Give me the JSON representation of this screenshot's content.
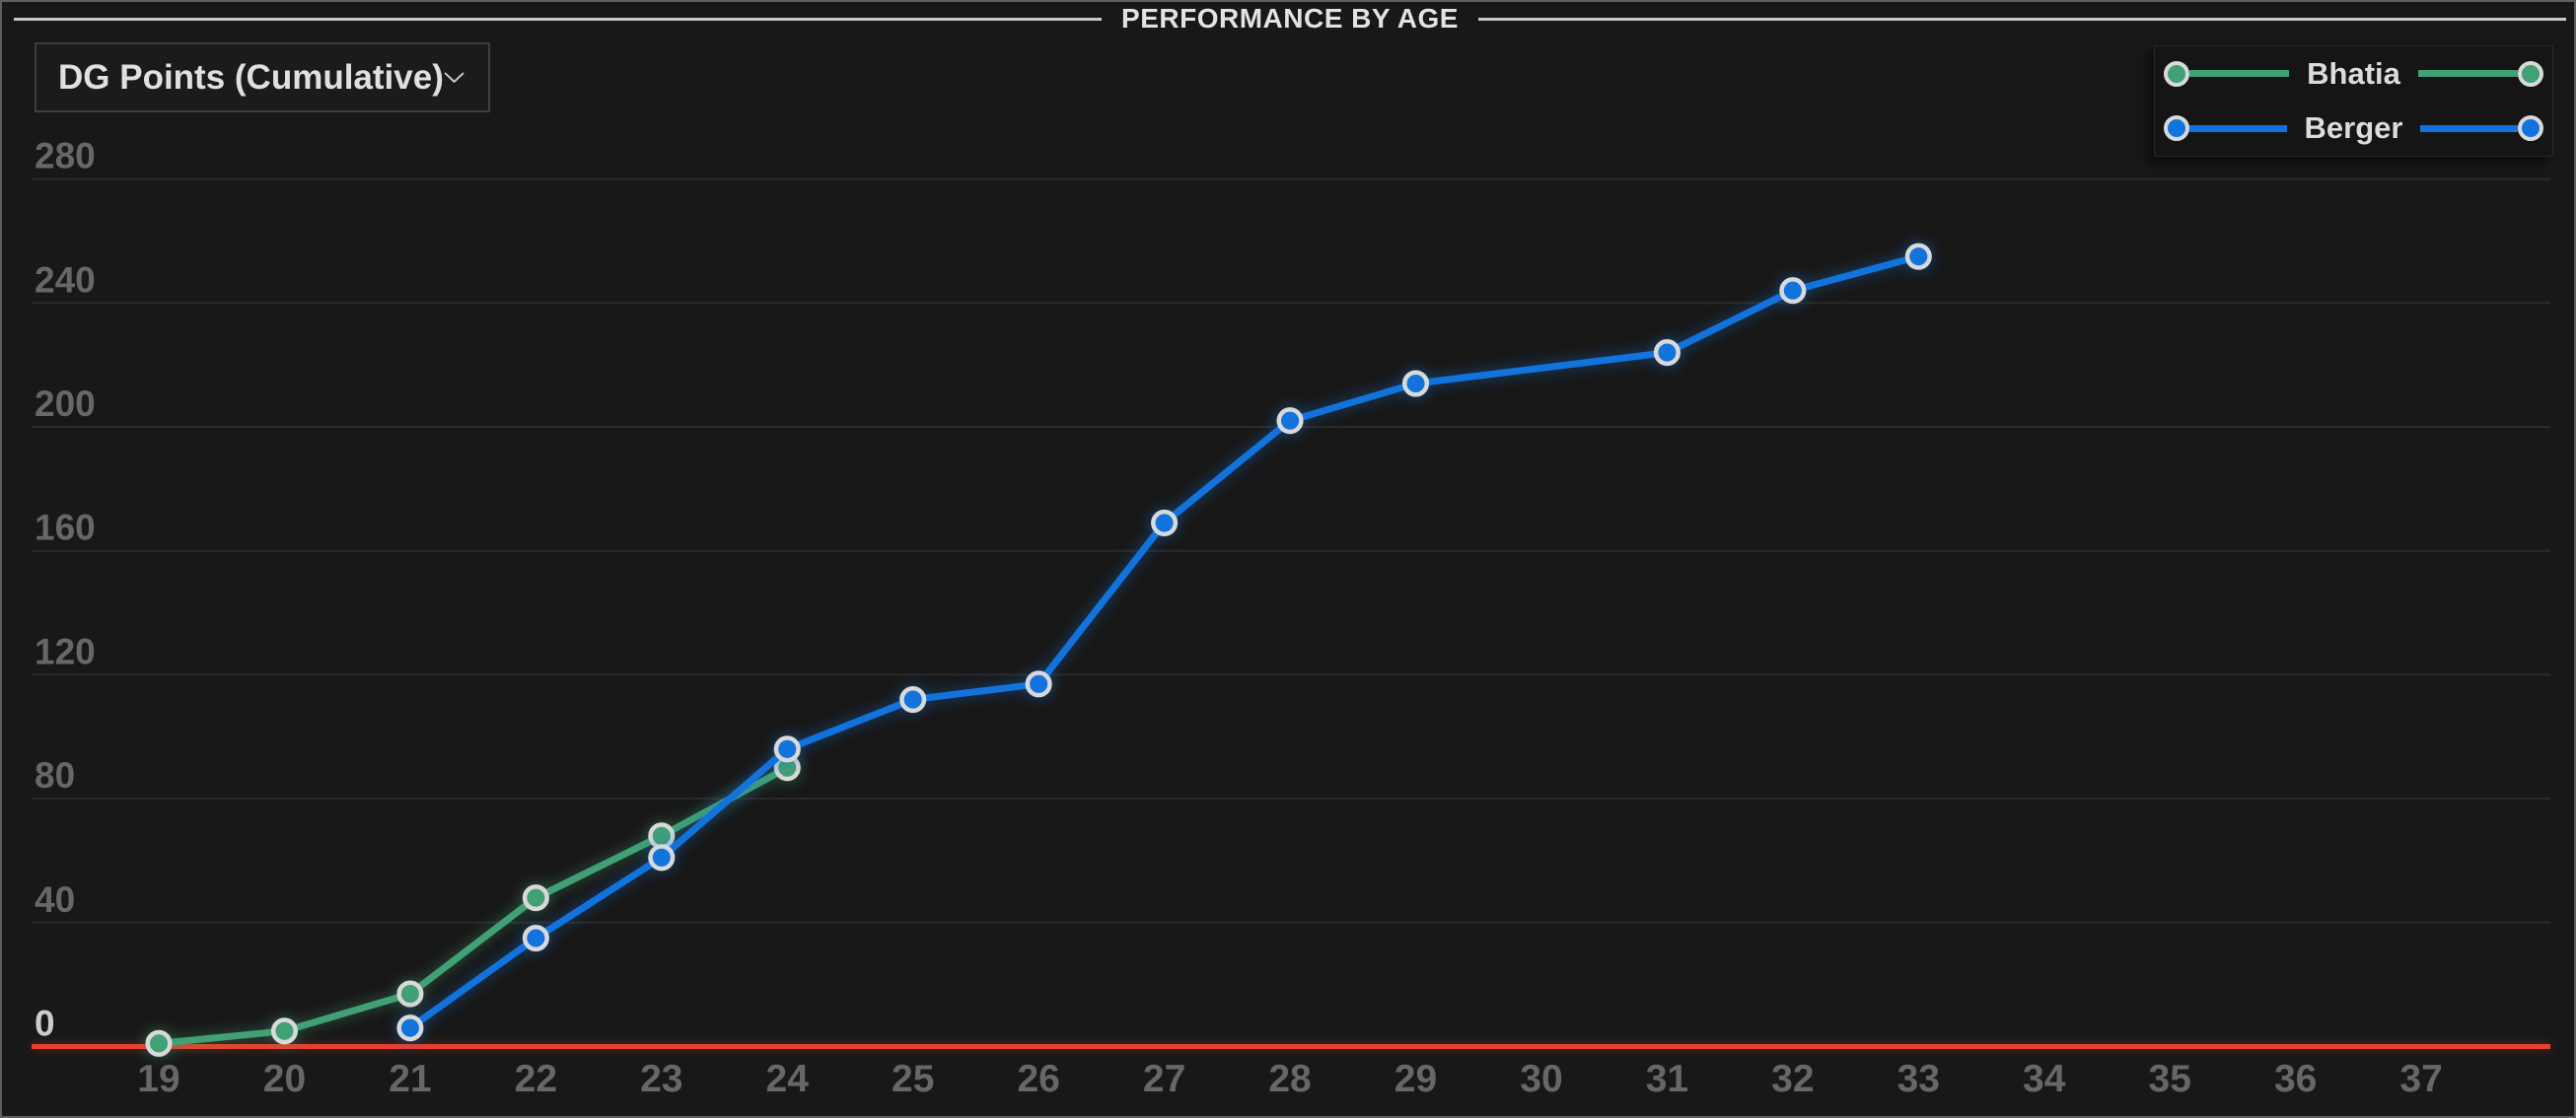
{
  "header": {
    "title": "PERFORMANCE BY AGE"
  },
  "controls": {
    "metric_dropdown": {
      "value": "DG Points (Cumulative)",
      "icon": "chevron-down"
    }
  },
  "legend": {
    "position": "top-right",
    "items": [
      {
        "name": "Bhatia",
        "color": "#41a074"
      },
      {
        "name": "Berger",
        "color": "#1273dc"
      }
    ]
  },
  "chart_data": {
    "type": "line",
    "title": "PERFORMANCE BY AGE",
    "xlabel": "",
    "ylabel": "",
    "x_ticks": [
      19,
      20,
      21,
      22,
      23,
      24,
      25,
      26,
      27,
      28,
      29,
      30,
      31,
      32,
      33,
      34,
      35,
      36,
      37
    ],
    "y_ticks": [
      0,
      40,
      80,
      120,
      160,
      200,
      240,
      280
    ],
    "xlim": [
      18.5,
      37.8
    ],
    "ylim": [
      0,
      280
    ],
    "grid": true,
    "legend_position": "top-right",
    "zero_line": {
      "value": 0,
      "color": "#e8402f"
    },
    "series": [
      {
        "name": "Bhatia",
        "color": "#41a074",
        "points": [
          {
            "age": 19,
            "value": 1
          },
          {
            "age": 20,
            "value": 5
          },
          {
            "age": 21,
            "value": 17
          },
          {
            "age": 22,
            "value": 48
          },
          {
            "age": 23,
            "value": 68
          },
          {
            "age": 24,
            "value": 90
          }
        ]
      },
      {
        "name": "Berger",
        "color": "#1273dc",
        "points": [
          {
            "age": 21,
            "value": 6
          },
          {
            "age": 22,
            "value": 35
          },
          {
            "age": 23,
            "value": 61
          },
          {
            "age": 24,
            "value": 96
          },
          {
            "age": 25,
            "value": 112
          },
          {
            "age": 26,
            "value": 117
          },
          {
            "age": 27,
            "value": 169
          },
          {
            "age": 28,
            "value": 202
          },
          {
            "age": 29,
            "value": 214
          },
          {
            "age": 31,
            "value": 224
          },
          {
            "age": 32,
            "value": 244
          },
          {
            "age": 33,
            "value": 255
          }
        ]
      }
    ],
    "styles": {
      "grid_color": "#2a2a2a",
      "tick_color": "#676767",
      "zero_tick_color": "#cccccc",
      "marker_ring_color": "#d9d9d9"
    }
  },
  "colors": {
    "background": "#181818",
    "panel_border": "#5f5f5f",
    "title_rule": "#c9c9c9"
  }
}
